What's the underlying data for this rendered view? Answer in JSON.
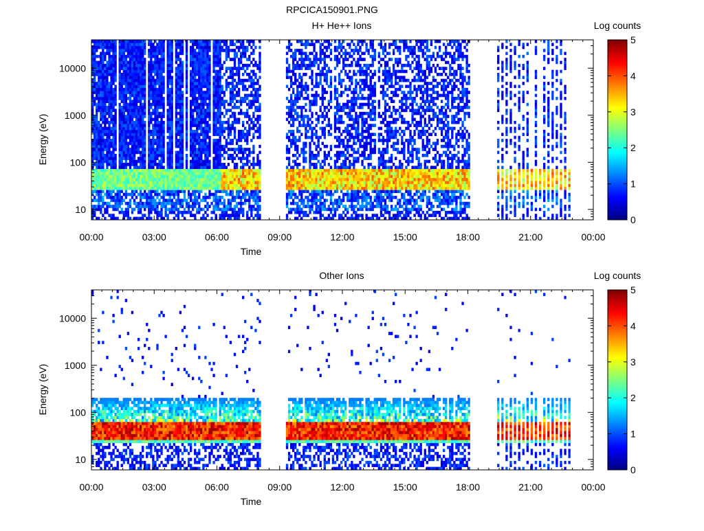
{
  "page_title": "RPCICA150901.PNG",
  "chart_data": [
    {
      "type": "heatmap",
      "title": "H+ He++ Ions",
      "xlabel": "Time",
      "ylabel": "Energy (eV)",
      "x_ticks": [
        "00:00",
        "03:00",
        "06:00",
        "09:00",
        "12:00",
        "15:00",
        "18:00",
        "21:00",
        "00:00"
      ],
      "x_range_hours": [
        0,
        24
      ],
      "y_scale": "log",
      "y_range": [
        6,
        40000
      ],
      "y_ticks": [
        "10",
        "100",
        "1000",
        "10000"
      ],
      "y_tick_values": [
        10,
        100,
        1000,
        10000
      ],
      "colorbar": {
        "label": "Log counts",
        "range": [
          0,
          5
        ],
        "ticks": [
          "0",
          "1",
          "2",
          "3",
          "4",
          "5"
        ]
      },
      "data_gaps_hours": [
        [
          8.15,
          9.3
        ],
        [
          18.15,
          19.35
        ],
        [
          23.05,
          24
        ]
      ],
      "sparse_interval_hours": [
        19.35,
        23.05
      ],
      "bands": [
        {
          "energy_range_eV": [
            10,
            70
          ],
          "log_counts_approx": 2.3
        },
        {
          "energy_range_eV": [
            30,
            70
          ],
          "log_counts_approx": 3.0
        },
        {
          "energy_range_eV": [
            70,
            40000
          ],
          "log_counts_approx": 0.6
        }
      ]
    },
    {
      "type": "heatmap",
      "title": "Other Ions",
      "xlabel": "Time",
      "ylabel": "Energy (eV)",
      "x_ticks": [
        "00:00",
        "03:00",
        "06:00",
        "09:00",
        "12:00",
        "15:00",
        "18:00",
        "21:00",
        "00:00"
      ],
      "x_range_hours": [
        0,
        24
      ],
      "y_scale": "log",
      "y_range": [
        6,
        40000
      ],
      "y_ticks": [
        "10",
        "100",
        "1000",
        "10000"
      ],
      "y_tick_values": [
        10,
        100,
        1000,
        10000
      ],
      "colorbar": {
        "label": "Log counts",
        "range": [
          0,
          5
        ],
        "ticks": [
          "0",
          "1",
          "2",
          "3",
          "4",
          "5"
        ]
      },
      "data_gaps_hours": [
        [
          8.15,
          9.3
        ],
        [
          18.15,
          19.35
        ],
        [
          23.05,
          24
        ]
      ],
      "sparse_interval_hours": [
        19.35,
        23.05
      ],
      "bands": [
        {
          "energy_range_eV": [
            30,
            60
          ],
          "log_counts_approx": 4.5
        },
        {
          "energy_range_eV": [
            20,
            200
          ],
          "log_counts_approx": 2.0
        },
        {
          "energy_range_eV": [
            200,
            40000
          ],
          "log_counts_approx": 0.3
        }
      ]
    }
  ]
}
